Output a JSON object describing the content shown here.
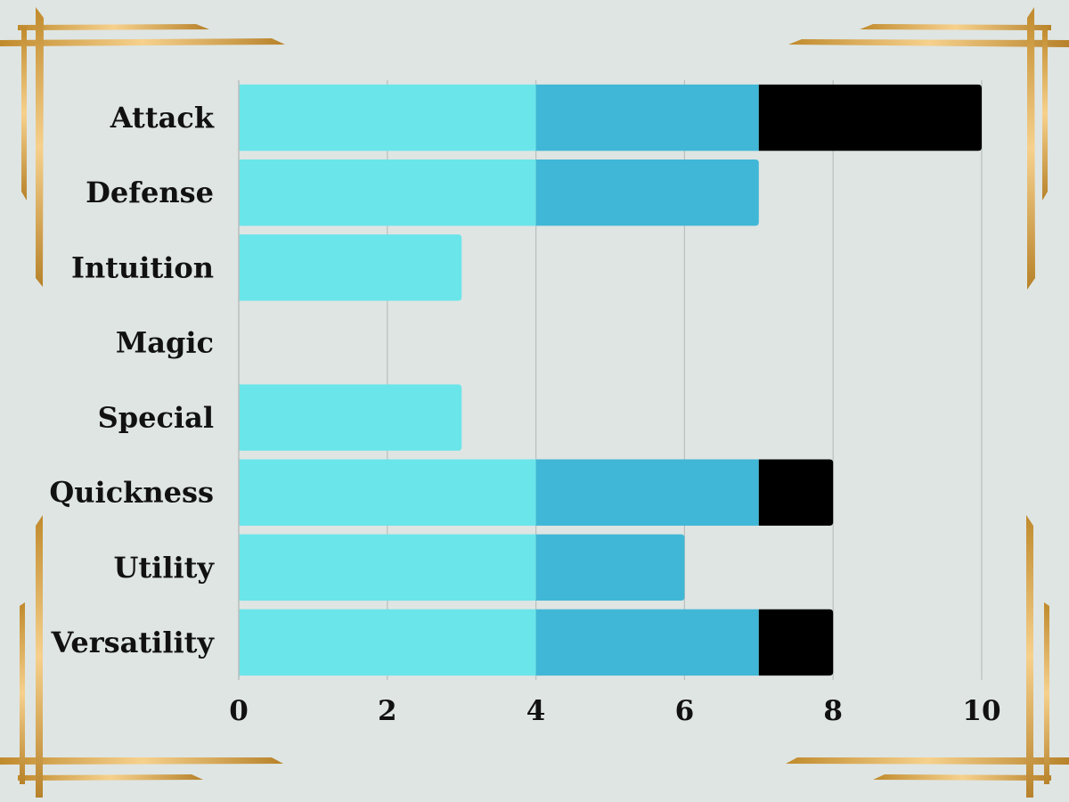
{
  "chart_data": {
    "type": "bar",
    "orientation": "horizontal",
    "stacked": true,
    "categories": [
      "Attack",
      "Defense",
      "Intuition",
      "Magic",
      "Special",
      "Quickness",
      "Utility",
      "Versatility"
    ],
    "series": [
      {
        "color": "#6ae5ea",
        "values": [
          4,
          4,
          3,
          0,
          3,
          4,
          4,
          4
        ]
      },
      {
        "color": "#40b7d6",
        "values": [
          3,
          3,
          0,
          0,
          0,
          3,
          2,
          3
        ]
      },
      {
        "color": "#000000",
        "values": [
          3,
          0,
          0,
          0,
          0,
          1,
          0,
          1
        ]
      }
    ],
    "xlim": [
      0,
      10
    ],
    "xticks": [
      "0",
      "2",
      "4",
      "6",
      "8",
      "10"
    ],
    "grid": true,
    "legend": "none"
  },
  "colors": {
    "background": "#dfe5e3",
    "gold": "#d9a441",
    "grid": "#b9bfbd"
  }
}
